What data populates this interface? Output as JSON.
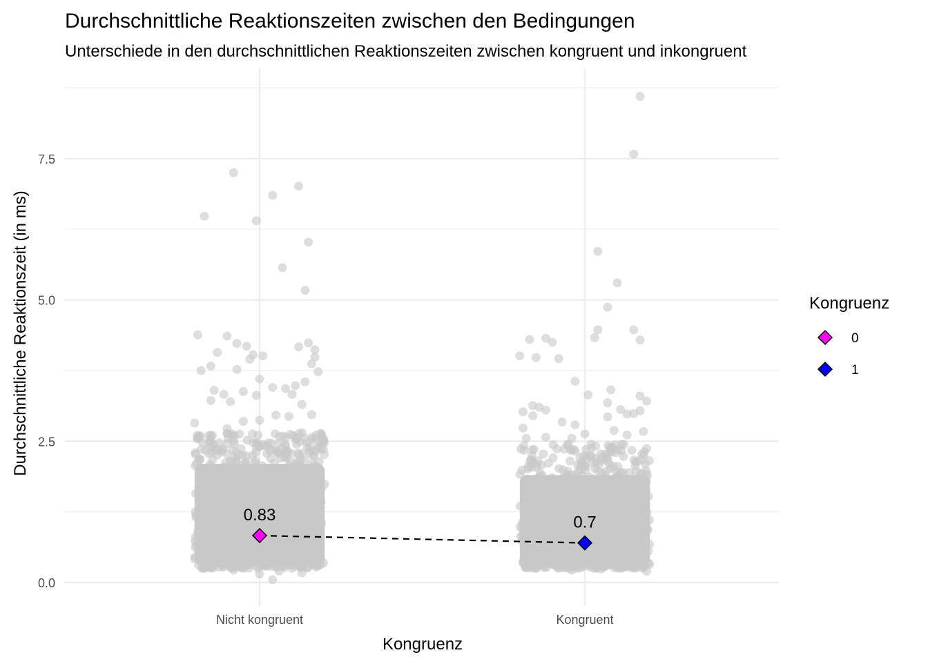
{
  "chart_data": {
    "type": "scatter",
    "title": "Durchschnittliche Reaktionszeiten zwischen den Bedingungen",
    "subtitle": "Unterschiede in den durchschnittlichen Reaktionszeiten zwischen kongruent und inkongruent",
    "xlabel": "Kongruenz",
    "ylabel": "Durchschnittliche Reaktionszeit (in ms)",
    "ylim": [
      -0.35,
      8.9
    ],
    "y_ticks": [
      0.0,
      2.5,
      5.0,
      7.5
    ],
    "y_tick_labels": [
      "0.0",
      "2.5",
      "5.0",
      "7.5"
    ],
    "categories": [
      "Nicht kongruent",
      "Kongruent"
    ],
    "grid": true,
    "legend": {
      "title": "Kongruenz",
      "position": "right",
      "entries": [
        {
          "label": "0",
          "color": "#ff00ff"
        },
        {
          "label": "1",
          "color": "#0000ff"
        }
      ]
    },
    "means": [
      {
        "category": "Nicht kongruent",
        "value": 0.83,
        "label": "0.83",
        "color": "#ff00ff"
      },
      {
        "category": "Kongruent",
        "value": 0.7,
        "label": "0.7",
        "color": "#0000ff"
      }
    ],
    "connector": {
      "style": "dashed",
      "color": "#000000"
    },
    "jitter_color": "#c8c8c8",
    "dense_band": [
      {
        "category": "Nicht kongruent",
        "y_range": [
          0.3,
          2.1
        ]
      },
      {
        "category": "Kongruent",
        "y_range": [
          0.3,
          1.9
        ]
      }
    ],
    "series": [
      {
        "name": "Nicht kongruent",
        "points": [
          [
            -0.17,
            6.48
          ],
          [
            -0.08,
            7.25
          ],
          [
            0.04,
            6.85
          ],
          [
            0.12,
            7.01
          ],
          [
            -0.01,
            6.4
          ],
          [
            0.15,
            6.02
          ],
          [
            0.07,
            5.57
          ],
          [
            0.14,
            5.17
          ],
          [
            -0.19,
            4.38
          ],
          [
            -0.1,
            4.36
          ],
          [
            -0.07,
            4.23
          ],
          [
            -0.04,
            4.18
          ],
          [
            -0.13,
            4.07
          ],
          [
            -0.02,
            4.03
          ],
          [
            0.01,
            4.01
          ],
          [
            -0.03,
            3.95
          ],
          [
            0.12,
            4.17
          ],
          [
            0.15,
            4.24
          ],
          [
            0.17,
            4.12
          ],
          [
            0.17,
            3.99
          ],
          [
            0.16,
            3.87
          ],
          [
            0.18,
            3.73
          ],
          [
            -0.18,
            3.75
          ],
          [
            -0.15,
            3.83
          ],
          [
            -0.07,
            3.77
          ],
          [
            0.0,
            3.6
          ],
          [
            0.14,
            3.55
          ],
          [
            0.11,
            3.48
          ],
          [
            0.08,
            3.43
          ],
          [
            0.04,
            3.45
          ],
          [
            -0.14,
            3.4
          ],
          [
            -0.11,
            3.33
          ],
          [
            -0.05,
            3.38
          ],
          [
            -0.15,
            3.22
          ],
          [
            -0.09,
            3.2
          ],
          [
            0.1,
            3.33
          ],
          [
            0.13,
            3.15
          ],
          [
            -0.01,
            3.31
          ],
          [
            0.16,
            2.97
          ],
          [
            0.19,
            2.63
          ],
          [
            0.19,
            2.46
          ],
          [
            -0.2,
            2.82
          ],
          [
            -0.15,
            2.6
          ],
          [
            -0.05,
            2.85
          ],
          [
            0.0,
            2.87
          ],
          [
            0.05,
            2.96
          ],
          [
            0.09,
            2.94
          ],
          [
            -0.1,
            2.72
          ],
          [
            0.11,
            2.56
          ],
          [
            0.18,
            2.38
          ],
          [
            0.0,
            0.15
          ],
          [
            0.13,
            0.17
          ],
          [
            0.06,
            0.2
          ],
          [
            -0.17,
            0.25
          ],
          [
            -0.08,
            0.22
          ],
          [
            0.18,
            0.3
          ],
          [
            0.04,
            0.05
          ]
        ]
      },
      {
        "name": "Kongruent",
        "points": [
          [
            0.17,
            8.6
          ],
          [
            0.15,
            7.58
          ],
          [
            0.04,
            5.86
          ],
          [
            0.1,
            5.3
          ],
          [
            0.07,
            4.87
          ],
          [
            0.15,
            4.47
          ],
          [
            0.04,
            4.47
          ],
          [
            0.03,
            4.33
          ],
          [
            0.17,
            4.29
          ],
          [
            -0.17,
            4.3
          ],
          [
            -0.12,
            4.32
          ],
          [
            -0.1,
            4.25
          ],
          [
            -0.2,
            4.01
          ],
          [
            -0.15,
            3.98
          ],
          [
            -0.08,
            3.96
          ],
          [
            -0.03,
            3.56
          ],
          [
            0.01,
            3.32
          ],
          [
            0.08,
            3.41
          ],
          [
            0.17,
            3.3
          ],
          [
            0.19,
            3.21
          ],
          [
            0.07,
            3.18
          ],
          [
            0.11,
            3.06
          ],
          [
            0.13,
            2.98
          ],
          [
            0.15,
            2.99
          ],
          [
            0.17,
            3.04
          ],
          [
            -0.16,
            3.13
          ],
          [
            -0.14,
            3.1
          ],
          [
            -0.12,
            3.05
          ],
          [
            -0.19,
            3.02
          ],
          [
            -0.16,
            2.95
          ],
          [
            -0.07,
            2.84
          ],
          [
            -0.03,
            2.79
          ],
          [
            0.0,
            2.63
          ],
          [
            0.07,
            2.93
          ],
          [
            0.09,
            2.69
          ],
          [
            0.13,
            2.61
          ],
          [
            0.18,
            2.67
          ],
          [
            -0.19,
            2.73
          ],
          [
            -0.18,
            2.55
          ],
          [
            -0.12,
            2.57
          ],
          [
            -0.04,
            2.55
          ],
          [
            0.02,
            2.38
          ],
          [
            0.12,
            2.44
          ],
          [
            0.19,
            2.37
          ],
          [
            -0.04,
            0.22
          ],
          [
            0.11,
            0.27
          ],
          [
            -0.15,
            0.25
          ],
          [
            0.19,
            0.2
          ],
          [
            0.05,
            0.24
          ]
        ]
      }
    ]
  }
}
